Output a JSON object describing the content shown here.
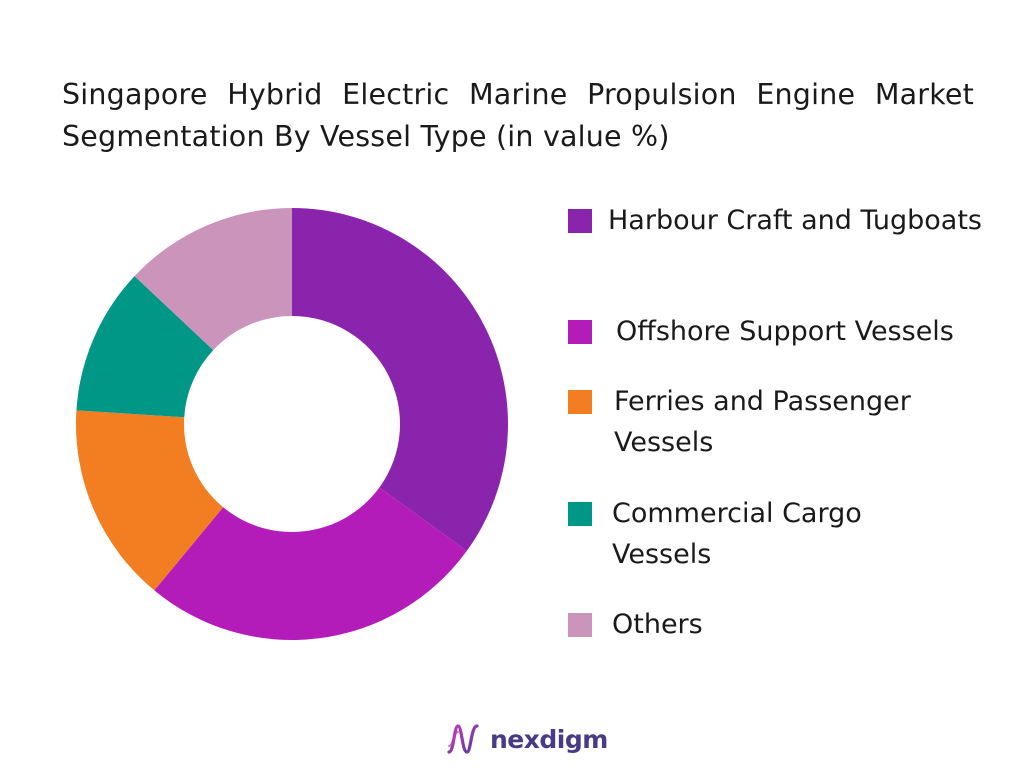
{
  "title": "Singapore Hybrid Electric Marine Propulsion Engine Market Segmentation By Vessel Type (in value %)",
  "brand": {
    "name": "nexdigm",
    "logo_icon": "nexdigm-wave-logo-icon"
  },
  "chart_data": {
    "type": "pie",
    "donut": true,
    "title": "Singapore Hybrid Electric Marine Propulsion Engine Market Segmentation By Vessel Type (in value %)",
    "legend_position": "right",
    "categories": [
      "Harbour Craft and Tugboats",
      "Offshore Support Vessels",
      "Ferries and Passenger Vessels",
      "Commercial Cargo Vessels",
      "Others"
    ],
    "values": [
      35,
      26,
      15,
      11,
      13
    ],
    "colors": [
      "#8b24ad",
      "#b41cba",
      "#f37e22",
      "#009787",
      "#ca94bb"
    ]
  }
}
